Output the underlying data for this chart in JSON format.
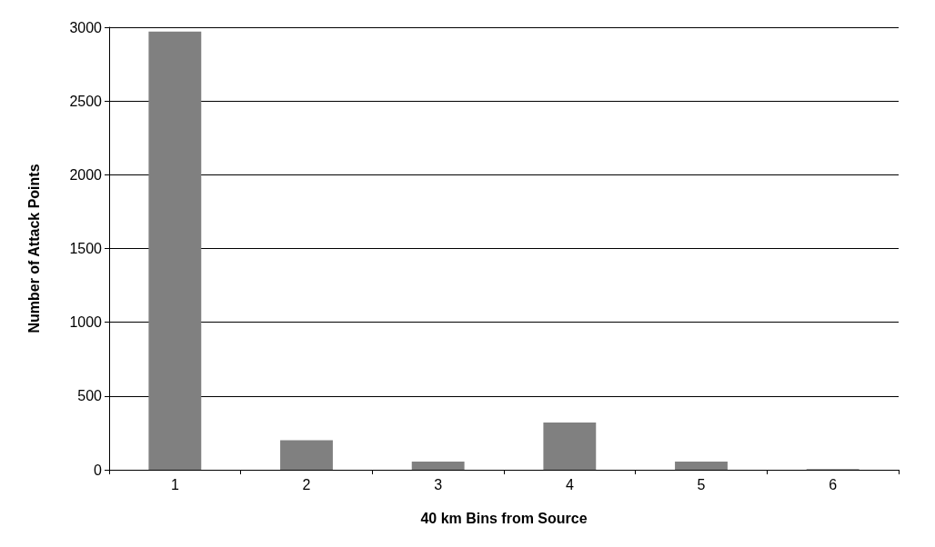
{
  "chart_data": {
    "type": "bar",
    "xlabel": "40 km Bins from Source",
    "ylabel": "Number of Attack Points",
    "categories": [
      "1",
      "2",
      "3",
      "4",
      "5",
      "6"
    ],
    "values": [
      2970,
      200,
      55,
      320,
      55,
      5
    ],
    "color": "#808080",
    "ylim": [
      0,
      3000
    ],
    "yticks": [
      0,
      500,
      1000,
      1500,
      2000,
      2500,
      3000
    ],
    "grid": "y"
  }
}
